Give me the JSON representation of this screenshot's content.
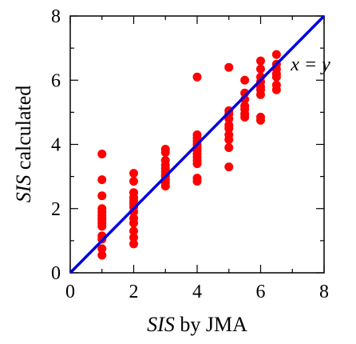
{
  "chart_data": {
    "type": "scatter",
    "title": "",
    "xlabel": {
      "italic": "SIS",
      "rest": " by JMA"
    },
    "ylabel": {
      "italic": "SIS",
      "rest": " calculated"
    },
    "xlim": [
      0,
      8
    ],
    "ylim": [
      0,
      8
    ],
    "xticks": [
      "0",
      "2",
      "4",
      "6",
      "8"
    ],
    "yticks": [
      "0",
      "2",
      "4",
      "6",
      "8"
    ],
    "grid": false,
    "point_color": "#ff0000",
    "line_color": "#0000dd",
    "reference_line": {
      "label": "x = y",
      "x": [
        0,
        8
      ],
      "y": [
        0,
        8
      ]
    },
    "series": [
      {
        "points": [
          [
            1,
            0.55
          ],
          [
            1,
            0.75
          ],
          [
            1,
            1.05
          ],
          [
            1,
            1.15
          ],
          [
            1,
            1.45
          ],
          [
            1,
            1.55
          ],
          [
            1,
            1.65
          ],
          [
            1,
            1.72
          ],
          [
            1,
            1.8
          ],
          [
            1,
            1.9
          ],
          [
            1,
            2.0
          ],
          [
            1,
            2.4
          ],
          [
            1,
            2.9
          ],
          [
            1,
            3.7
          ],
          [
            2,
            0.9
          ],
          [
            2,
            1.1
          ],
          [
            2,
            1.3
          ],
          [
            2,
            1.55
          ],
          [
            2,
            1.7
          ],
          [
            2,
            1.9
          ],
          [
            2,
            2.05
          ],
          [
            2,
            2.15
          ],
          [
            2,
            2.25
          ],
          [
            2,
            2.35
          ],
          [
            2,
            2.5
          ],
          [
            2,
            2.85
          ],
          [
            2,
            3.1
          ],
          [
            3,
            2.7
          ],
          [
            3,
            2.8
          ],
          [
            3,
            2.9
          ],
          [
            3,
            3.0
          ],
          [
            3,
            3.05
          ],
          [
            3,
            3.15
          ],
          [
            3,
            3.25
          ],
          [
            3,
            3.35
          ],
          [
            3,
            3.5
          ],
          [
            3,
            3.75
          ],
          [
            3,
            3.85
          ],
          [
            4,
            2.85
          ],
          [
            4,
            2.95
          ],
          [
            4,
            3.4
          ],
          [
            4,
            3.5
          ],
          [
            4,
            3.6
          ],
          [
            4,
            3.7
          ],
          [
            4,
            3.8
          ],
          [
            4,
            3.9
          ],
          [
            4,
            4.0
          ],
          [
            4,
            4.1
          ],
          [
            4,
            4.2
          ],
          [
            4,
            4.3
          ],
          [
            4,
            6.1
          ],
          [
            5,
            3.3
          ],
          [
            5,
            3.9
          ],
          [
            5,
            4.15
          ],
          [
            5,
            4.3
          ],
          [
            5,
            4.5
          ],
          [
            5,
            4.6
          ],
          [
            5,
            4.8
          ],
          [
            5,
            4.95
          ],
          [
            5,
            5.05
          ],
          [
            5,
            6.4
          ],
          [
            5.5,
            4.85
          ],
          [
            5.5,
            4.95
          ],
          [
            5.5,
            5.1
          ],
          [
            5.5,
            5.2
          ],
          [
            5.5,
            5.4
          ],
          [
            5.5,
            5.6
          ],
          [
            5.5,
            6.0
          ],
          [
            6,
            4.75
          ],
          [
            6,
            4.85
          ],
          [
            6,
            5.55
          ],
          [
            6,
            5.7
          ],
          [
            6,
            5.8
          ],
          [
            6,
            5.95
          ],
          [
            6,
            6.1
          ],
          [
            6,
            6.35
          ],
          [
            6,
            6.6
          ],
          [
            6.5,
            5.7
          ],
          [
            6.5,
            5.85
          ],
          [
            6.5,
            6.1
          ],
          [
            6.5,
            6.2
          ],
          [
            6.5,
            6.35
          ],
          [
            6.5,
            6.5
          ],
          [
            6.5,
            6.8
          ]
        ]
      }
    ]
  }
}
